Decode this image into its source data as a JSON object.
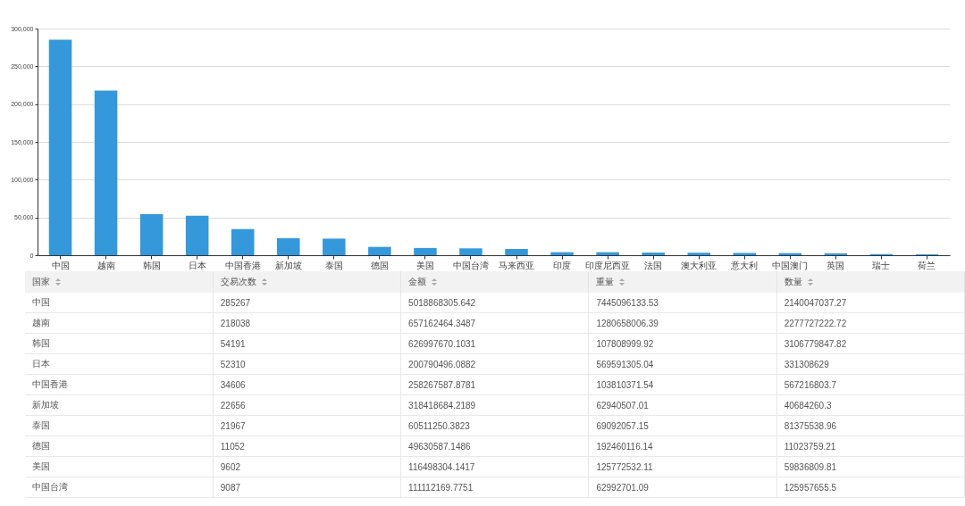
{
  "chart_data": [
    {
      "type": "bar",
      "categories": [
        "中国",
        "越南",
        "韩国",
        "日本",
        "中国香港",
        "新加坡",
        "泰国",
        "德国",
        "美国",
        "中国台湾",
        "马来西亚",
        "印度",
        "印度尼西亚",
        "法国",
        "澳大利亚",
        "意大利",
        "中国澳门",
        "英国",
        "瑞士",
        "荷兰"
      ],
      "values": [
        285267,
        218038,
        54191,
        52310,
        34606,
        22656,
        21967,
        11052,
        9602,
        9087,
        8300,
        4000,
        4000,
        3500,
        3300,
        3000,
        2800,
        2500,
        1500,
        1200
      ],
      "color": "#3498db",
      "ylim": [
        0,
        300000
      ],
      "yticks": [
        0,
        {
          "value": 50000,
          "label": "50,000"
        },
        {
          "value": 100000,
          "label": "100,000"
        },
        {
          "value": 150000,
          "label": "150,000"
        },
        {
          "value": 200000,
          "label": "200,000"
        },
        {
          "value": 250000,
          "label": "250,000"
        },
        {
          "value": 300000,
          "label": "300,000"
        }
      ],
      "grid": "y"
    },
    {
      "type": "other",
      "categories": [
        "国家",
        "交易次数",
        "金额",
        "重量",
        "数量"
      ],
      "annotations": [
        "中国",
        "285267",
        "5018868305.642",
        "7445096133.53",
        "2140047037.27",
        "越南",
        "218038",
        "657162464.3487",
        "1280658006.39",
        "2277727222.72",
        "韩国",
        "54191",
        "626997670.1031",
        "107808999.92",
        "3106779847.82",
        "日本",
        "52310",
        "200790496.0882",
        "569591305.04",
        "331308629",
        "中国香港",
        "34606",
        "258267587.8781",
        "103810371.54",
        "567216803.7",
        "新加坡",
        "22656",
        "318418684.2189",
        "62940507.01",
        "40684260.3",
        "泰国",
        "21967",
        "60511250.3823",
        "69092057.15",
        "81375538.96",
        "德国",
        "11052",
        "49630587.1486",
        "192460116.14",
        "11023759.21",
        "美国",
        "9602",
        "116498304.1417",
        "125772532.11",
        "59836809.81",
        "中国台湾",
        "9087",
        "111112169.7751",
        "62992701.09",
        "125957655.5"
      ]
    }
  ]
}
